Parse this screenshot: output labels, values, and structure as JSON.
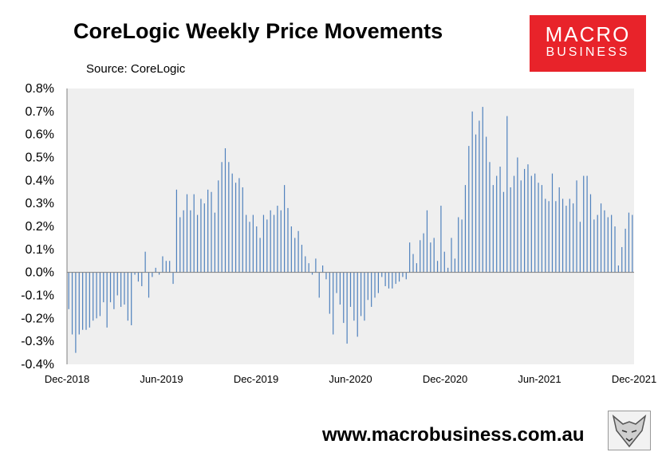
{
  "header": {
    "title": "CoreLogic Weekly Price Movements",
    "source": "Source: CoreLogic"
  },
  "logo": {
    "line1": "MACRO",
    "line2": "BUSINESS",
    "color": "#e8232a"
  },
  "footer": {
    "url": "www.macrobusiness.com.au"
  },
  "chart_data": {
    "type": "bar",
    "x_tick_labels": [
      "Dec-2018",
      "Jun-2019",
      "Dec-2019",
      "Jun-2020",
      "Dec-2020",
      "Jun-2021",
      "Dec-2021"
    ],
    "y_tick_labels": [
      "0.8%",
      "0.7%",
      "0.6%",
      "0.5%",
      "0.4%",
      "0.3%",
      "0.2%",
      "0.1%",
      "0.0%",
      "-0.1%",
      "-0.2%",
      "-0.3%",
      "-0.4%"
    ],
    "ylim": [
      -0.4,
      0.8
    ],
    "bar_color": "#4f81bd",
    "plot_background": "#efefef",
    "grid": false,
    "values": [
      -0.16,
      -0.27,
      -0.35,
      -0.27,
      -0.25,
      -0.25,
      -0.24,
      -0.21,
      -0.2,
      -0.19,
      -0.13,
      -0.24,
      -0.13,
      -0.16,
      -0.1,
      -0.15,
      -0.14,
      -0.21,
      -0.23,
      -0.01,
      -0.04,
      -0.06,
      0.09,
      -0.11,
      -0.02,
      0.02,
      -0.01,
      0.07,
      0.05,
      0.05,
      -0.05,
      0.36,
      0.24,
      0.27,
      0.34,
      0.27,
      0.34,
      0.25,
      0.32,
      0.3,
      0.36,
      0.35,
      0.26,
      0.4,
      0.48,
      0.54,
      0.48,
      0.43,
      0.39,
      0.41,
      0.37,
      0.25,
      0.22,
      0.25,
      0.2,
      0.15,
      0.25,
      0.23,
      0.27,
      0.25,
      0.29,
      0.27,
      0.38,
      0.28,
      0.2,
      0.15,
      0.18,
      0.12,
      0.07,
      0.04,
      -0.01,
      0.06,
      -0.11,
      0.03,
      -0.03,
      -0.18,
      -0.27,
      -0.09,
      -0.14,
      -0.22,
      -0.31,
      -0.15,
      -0.21,
      -0.28,
      -0.19,
      -0.21,
      -0.12,
      -0.15,
      -0.11,
      -0.09,
      -0.02,
      -0.06,
      -0.07,
      -0.07,
      -0.05,
      -0.04,
      -0.02,
      -0.03,
      0.13,
      0.08,
      0.04,
      0.14,
      0.17,
      0.27,
      0.13,
      0.15,
      0.05,
      0.29,
      0.09,
      0.02,
      0.15,
      0.06,
      0.24,
      0.23,
      0.38,
      0.55,
      0.7,
      0.6,
      0.66,
      0.72,
      0.59,
      0.48,
      0.38,
      0.42,
      0.46,
      0.35,
      0.68,
      0.37,
      0.42,
      0.5,
      0.4,
      0.45,
      0.47,
      0.42,
      0.43,
      0.39,
      0.38,
      0.32,
      0.31,
      0.43,
      0.31,
      0.37,
      0.32,
      0.29,
      0.32,
      0.3,
      0.4,
      0.22,
      0.42,
      0.42,
      0.34,
      0.23,
      0.25,
      0.3,
      0.27,
      0.24,
      0.25,
      0.2,
      0.03,
      0.11,
      0.19,
      0.26,
      0.25
    ]
  }
}
